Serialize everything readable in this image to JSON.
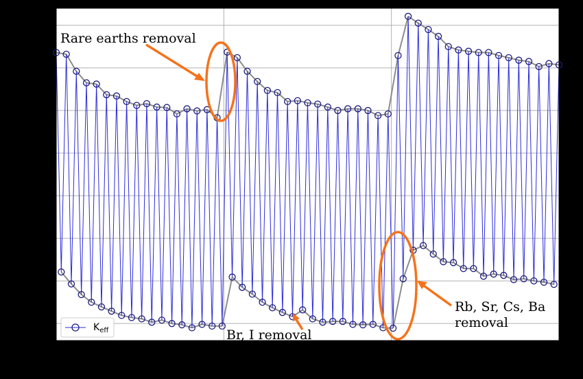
{
  "chart_data": {
    "type": "line",
    "series": [
      {
        "name": "Keff",
        "color": "#2b2bd9",
        "marker_color": "#1c1c80",
        "x": [
          0,
          0.03,
          0.06,
          0.09,
          0.12,
          0.15,
          0.18,
          0.21,
          0.24,
          0.27,
          0.3,
          0.33,
          0.36,
          0.39,
          0.42,
          0.45,
          0.48,
          0.51,
          0.54,
          0.57,
          0.6,
          0.63,
          0.66,
          0.69,
          0.72,
          0.75,
          0.78,
          0.81,
          0.84,
          0.87,
          0.9,
          0.93,
          0.96,
          0.99,
          1.02,
          1.05,
          1.08,
          1.11,
          1.14,
          1.17,
          1.2,
          1.23,
          1.26,
          1.29,
          1.32,
          1.35,
          1.38,
          1.41,
          1.44,
          1.47,
          1.5,
          1.53,
          1.56,
          1.59,
          1.62,
          1.65,
          1.68,
          1.71,
          1.74,
          1.77,
          1.8,
          1.83,
          1.86,
          1.89,
          1.92,
          1.95,
          1.98,
          2.01,
          2.04,
          2.07,
          2.1,
          2.13,
          2.16,
          2.19,
          2.22,
          2.25,
          2.28,
          2.31,
          2.34,
          2.37,
          2.4,
          2.43,
          2.46,
          2.49,
          2.52,
          2.55,
          2.58,
          2.61,
          2.64,
          2.67,
          2.7,
          2.73,
          2.76,
          2.79,
          2.82,
          2.85,
          2.88,
          2.91,
          2.94,
          2.97,
          3.0
        ],
        "values": [
          6.36,
          1.21,
          6.32,
          0.93,
          5.92,
          0.68,
          5.65,
          0.5,
          5.62,
          0.39,
          5.37,
          0.29,
          5.34,
          0.19,
          5.21,
          0.14,
          5.12,
          0.11,
          5.16,
          0.03,
          5.08,
          0.08,
          5.07,
          0,
          4.92,
          -0.03,
          5.04,
          -0.1,
          4.99,
          -0.02,
          5.02,
          -0.06,
          4.83,
          -0.06,
          6.37,
          1.09,
          6.24,
          0.85,
          5.92,
          0.69,
          5.68,
          0.5,
          5.47,
          0.37,
          5.42,
          0.26,
          5.21,
          0.16,
          5.23,
          0.32,
          5.18,
          0.11,
          5.15,
          0.03,
          5.08,
          0.05,
          5.0,
          0.05,
          5.04,
          -0.02,
          5.04,
          -0.03,
          5.0,
          -0.02,
          4.88,
          -0.1,
          4.92,
          -0.11,
          6.29,
          1.05,
          7.21,
          1.72,
          7.05,
          1.83,
          6.9,
          1.63,
          6.74,
          1.45,
          6.5,
          1.43,
          6.42,
          1.29,
          6.39,
          1.29,
          6.36,
          1.11,
          6.36,
          1.16,
          6.29,
          1.13,
          6.24,
          1.03,
          6.18,
          1.05,
          6.15,
          1.0,
          6.03,
          0.97,
          6.1,
          0.92,
          6.07
        ]
      }
    ],
    "envelope_color": "#8c8c8c",
    "xlim": [
      0,
      3
    ],
    "xticks": [
      1,
      2
    ],
    "ylim": [
      -0.4,
      7.4
    ],
    "yticks": [
      0,
      1,
      2,
      3,
      4,
      5,
      6,
      7
    ],
    "grid": true,
    "legend": "lower left",
    "annotations": [
      {
        "lines": [
          "Rare earths removal"
        ]
      },
      {
        "lines": [
          "Br, I removal"
        ]
      },
      {
        "lines": [
          "Rb, Sr, Cs, Ba",
          "removal"
        ]
      }
    ],
    "annotation_color": "#f5721b"
  }
}
